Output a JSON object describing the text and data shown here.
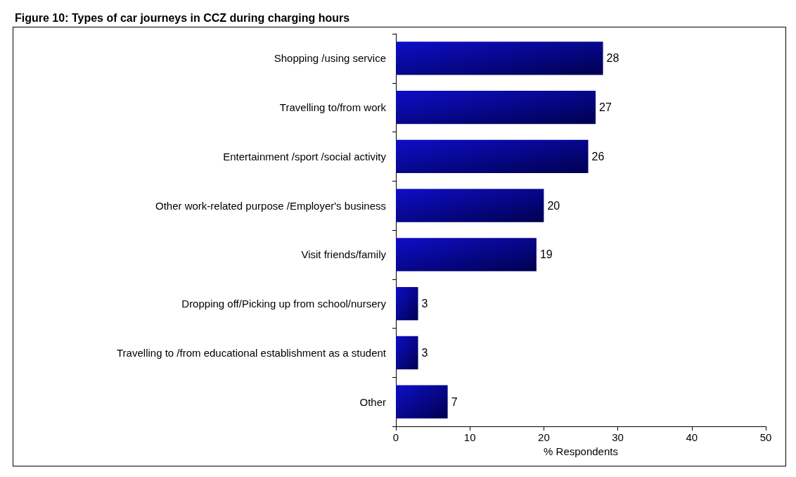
{
  "chart_data": {
    "type": "bar",
    "orientation": "horizontal",
    "title": "Figure 10: Types of car journeys in CCZ during charging hours",
    "categories": [
      "Shopping /using service",
      "Travelling to/from work",
      "Entertainment /sport /social activity",
      "Other work-related purpose /Employer's business",
      "Visit friends/family",
      "Dropping off/Picking up from school/nursery",
      "Travelling to /from educational establishment as a student",
      "Other"
    ],
    "values": [
      28,
      27,
      26,
      20,
      19,
      3,
      3,
      7
    ],
    "color": "#0e0ec8",
    "xlabel": "% Respondents",
    "xlim": [
      0,
      50
    ],
    "xticks": [
      0,
      10,
      20,
      30,
      40,
      50
    ],
    "data_labels": true,
    "grid": false
  }
}
